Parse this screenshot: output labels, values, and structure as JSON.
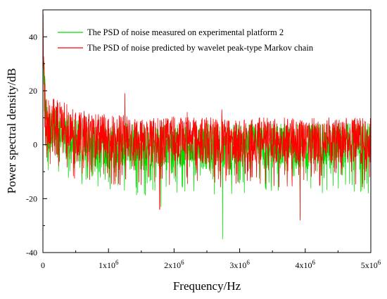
{
  "chart_data": {
    "type": "line",
    "title": "",
    "xlabel": "Frequency/Hz",
    "ylabel": "Power spectral density/dB",
    "xlim": [
      0,
      5000000
    ],
    "ylim": [
      -40,
      50
    ],
    "x_ticks": [
      {
        "value": 0,
        "label": "0"
      },
      {
        "value": 1000000,
        "label": "1x10",
        "exp": "6"
      },
      {
        "value": 2000000,
        "label": "2x10",
        "exp": "6"
      },
      {
        "value": 3000000,
        "label": "3x10",
        "exp": "6"
      },
      {
        "value": 4000000,
        "label": "4x10",
        "exp": "6"
      },
      {
        "value": 5000000,
        "label": "5x10",
        "exp": "6"
      }
    ],
    "y_ticks": [
      {
        "value": -40,
        "label": "-40"
      },
      {
        "value": -20,
        "label": "-20"
      },
      {
        "value": 0,
        "label": "0"
      },
      {
        "value": 20,
        "label": "20"
      },
      {
        "value": 40,
        "label": "40"
      }
    ],
    "grid": false,
    "legend_position": "top-right",
    "series": [
      {
        "name": "The PSD of noise measured on experimental platform 2",
        "color": "#00dd00",
        "x": [
          0,
          10000,
          20000,
          40000,
          60000,
          100000,
          150000,
          200000,
          300000,
          500000,
          750000,
          1000000,
          1250000,
          1500000,
          1750000,
          2000000,
          2500000,
          2740000,
          3000000,
          3500000,
          4000000,
          4500000,
          5000000
        ],
        "y": [
          48,
          35,
          22,
          12,
          8,
          5,
          6,
          7,
          4,
          2,
          1,
          0,
          0,
          -1,
          -1,
          0,
          0,
          -1,
          0,
          0,
          0,
          0,
          0
        ],
        "spikes": [
          {
            "x": 1800000,
            "y": -23
          },
          {
            "x": 2740000,
            "y": -35
          },
          {
            "x": 3920000,
            "y": -27
          },
          {
            "x": 4960000,
            "y": -18
          }
        ]
      },
      {
        "name": "The PSD of noise predicted by wavelet peak-type Markov chain",
        "color": "#ff0000",
        "x": [
          0,
          10000,
          20000,
          40000,
          60000,
          100000,
          150000,
          200000,
          300000,
          500000,
          750000,
          1000000,
          1250000,
          1500000,
          1750000,
          2000000,
          2500000,
          3000000,
          3500000,
          4000000,
          4500000,
          5000000
        ],
        "y": [
          47,
          38,
          25,
          14,
          10,
          8,
          9,
          10,
          8,
          5,
          4,
          3,
          3,
          2,
          2,
          3,
          2,
          2,
          2,
          2,
          2,
          2
        ],
        "spikes": [
          {
            "x": 1250000,
            "y": 19
          },
          {
            "x": 2200000,
            "y": 12
          },
          {
            "x": 2730000,
            "y": 13
          },
          {
            "x": 1780000,
            "y": -24
          },
          {
            "x": 3920000,
            "y": -28
          }
        ]
      }
    ]
  }
}
